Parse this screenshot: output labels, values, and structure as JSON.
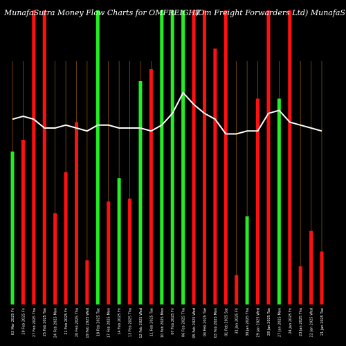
{
  "title_left": "MunafaSutra Money Flow Charts for OMFREIGHT",
  "title_right": "(Om Freight Forwarders Ltd) MunafaSutra.com",
  "colors": {
    "background": "#000000",
    "up": "#22ee22",
    "down": "#ff1010",
    "line": "#ffffff",
    "grid": "#b36b00"
  },
  "chart_data": {
    "type": "bar",
    "ylim": [
      0,
      100
    ],
    "categories": [
      "03 Mar 2025 Fri",
      "28 Feb 2025 Fri",
      "27 Feb 2025 Thu",
      "25 Feb 2025 Tue",
      "24 Feb 2025 Mon",
      "21 Feb 2025 Fri",
      "20 Feb 2025 Thu",
      "19 Feb 2025 Wed",
      "18 Feb 2025 Tue",
      "17 Feb 2025 Mon",
      "14 Feb 2025 Fri",
      "13 Feb 2025 Thu",
      "12 Feb 2025 Wed",
      "11 Feb 2025 Tue",
      "10 Feb 2025 Mon",
      "07 Feb 2025 Fri",
      "06 Feb 2025 Thu",
      "05 Feb 2025 Wed",
      "04 Feb 2025 Tue",
      "03 Feb 2025 Mon",
      "01 Feb 2025 Sat",
      "31 Jan 2025 Fri",
      "30 Jan 2025 Thu",
      "29 Jan 2025 Wed",
      "28 Jan 2025 Tue",
      "27 Jan 2025 Mon",
      "24 Jan 2025 Fri",
      "23 Jan 2025 Thu",
      "22 Jan 2025 Wed",
      "21 Jan 2025 Tue"
    ],
    "bars": [
      {
        "value": 52,
        "dir": "up"
      },
      {
        "value": 56,
        "dir": "down"
      },
      {
        "value": 100,
        "dir": "down"
      },
      {
        "value": 100,
        "dir": "down"
      },
      {
        "value": 31,
        "dir": "down"
      },
      {
        "value": 45,
        "dir": "down"
      },
      {
        "value": 62,
        "dir": "down"
      },
      {
        "value": 15,
        "dir": "down"
      },
      {
        "value": 100,
        "dir": "up"
      },
      {
        "value": 35,
        "dir": "down"
      },
      {
        "value": 43,
        "dir": "up"
      },
      {
        "value": 36,
        "dir": "down"
      },
      {
        "value": 76,
        "dir": "up"
      },
      {
        "value": 80,
        "dir": "down"
      },
      {
        "value": 100,
        "dir": "up"
      },
      {
        "value": 100,
        "dir": "up"
      },
      {
        "value": 100,
        "dir": "up"
      },
      {
        "value": 100,
        "dir": "down"
      },
      {
        "value": 100,
        "dir": "down"
      },
      {
        "value": 87,
        "dir": "down"
      },
      {
        "value": 100,
        "dir": "down"
      },
      {
        "value": 10,
        "dir": "down"
      },
      {
        "value": 30,
        "dir": "up"
      },
      {
        "value": 70,
        "dir": "down"
      },
      {
        "value": 100,
        "dir": "down"
      },
      {
        "value": 70,
        "dir": "up"
      },
      {
        "value": 100,
        "dir": "down"
      },
      {
        "value": 13,
        "dir": "down"
      },
      {
        "value": 25,
        "dir": "down"
      },
      {
        "value": 18,
        "dir": "down"
      }
    ],
    "line": [
      63,
      64,
      63,
      60,
      60,
      61,
      60,
      59,
      61,
      61,
      60,
      60,
      60,
      59,
      61,
      65,
      72,
      68,
      65,
      63,
      58,
      58,
      59,
      59,
      65,
      66,
      62,
      61,
      60,
      59
    ]
  }
}
